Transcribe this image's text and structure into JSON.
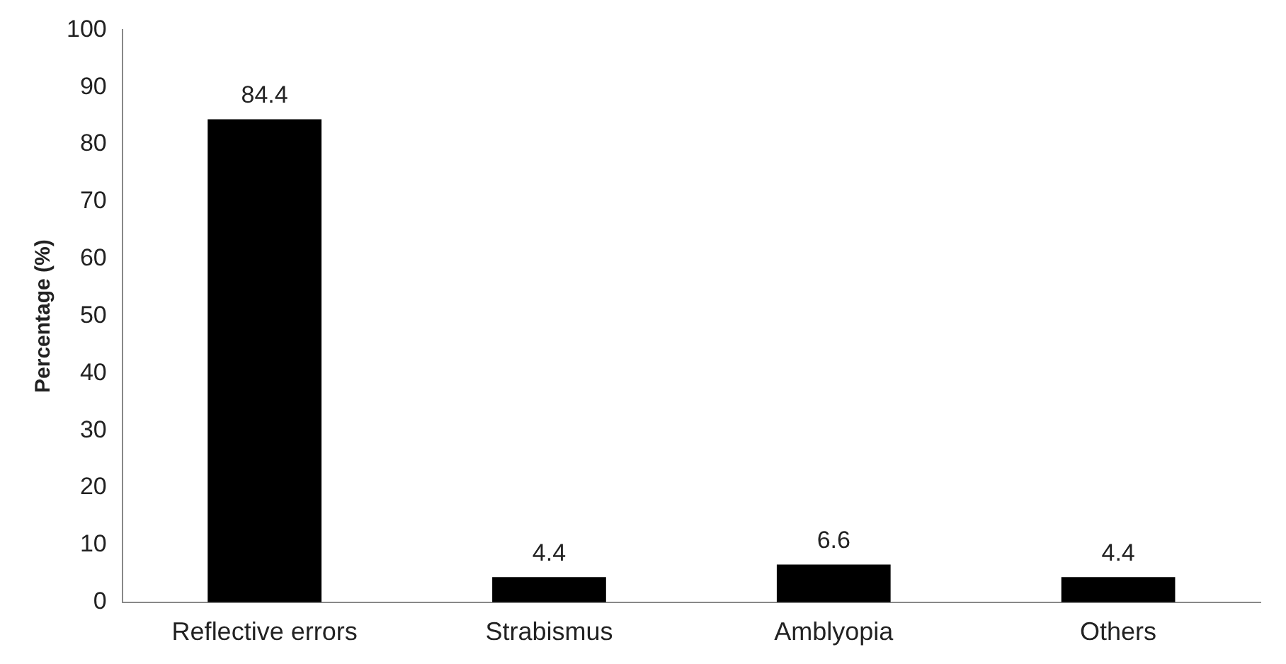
{
  "chart_data": {
    "type": "bar",
    "ylabel": "Percentage (%)",
    "categories": [
      "Reflective errors",
      "Strabismus",
      "Amblyopia",
      "Others"
    ],
    "values": [
      84.4,
      4.4,
      6.6,
      4.4
    ],
    "color": "#000000",
    "ylim": [
      0,
      100
    ],
    "yticks": [
      0,
      10,
      20,
      30,
      40,
      50,
      60,
      70,
      80,
      90,
      100
    ],
    "grid": false,
    "legend": false,
    "data_labels": true
  }
}
